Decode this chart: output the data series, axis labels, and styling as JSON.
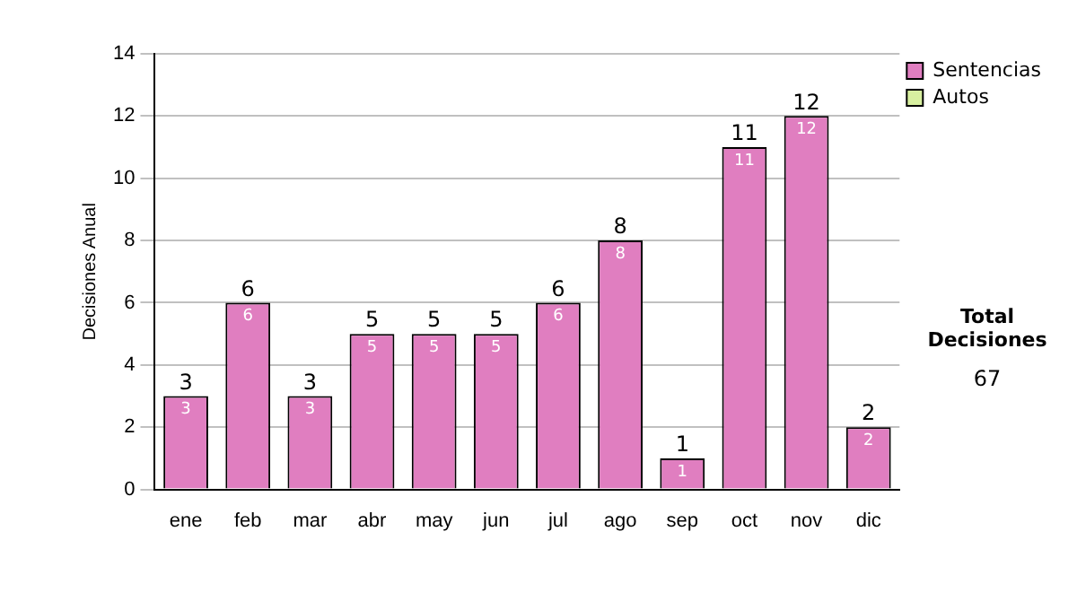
{
  "chart_data": {
    "type": "bar",
    "ylabel": "Decisiones Anual",
    "categories": [
      "ene",
      "feb",
      "mar",
      "abr",
      "may",
      "jun",
      "jul",
      "ago",
      "sep",
      "oct",
      "nov",
      "dic"
    ],
    "stacked": true,
    "series": [
      {
        "name": "Sentencias",
        "color": "#e07ec0",
        "values": [
          3,
          6,
          3,
          5,
          5,
          5,
          6,
          8,
          1,
          11,
          12,
          2
        ],
        "value_labels": [
          "3",
          "6",
          "3",
          "5",
          "5",
          "5",
          "6",
          "8",
          "1",
          "11",
          "12",
          "2"
        ]
      },
      {
        "name": "Autos",
        "color": "#d8f0a0",
        "values": [
          0,
          0,
          0,
          0,
          0,
          0,
          0,
          0,
          0,
          0,
          0,
          0
        ]
      }
    ],
    "totals": [
      "3",
      "6",
      "3",
      "5",
      "5",
      "5",
      "6",
      "8",
      "1",
      "11",
      "12",
      "2"
    ],
    "ylim": [
      0,
      14
    ],
    "yticks": [
      0,
      2,
      4,
      6,
      8,
      10,
      12,
      14
    ],
    "grid": "y",
    "legend": "right",
    "annotations": [
      "Total Decisiones",
      "67"
    ]
  }
}
